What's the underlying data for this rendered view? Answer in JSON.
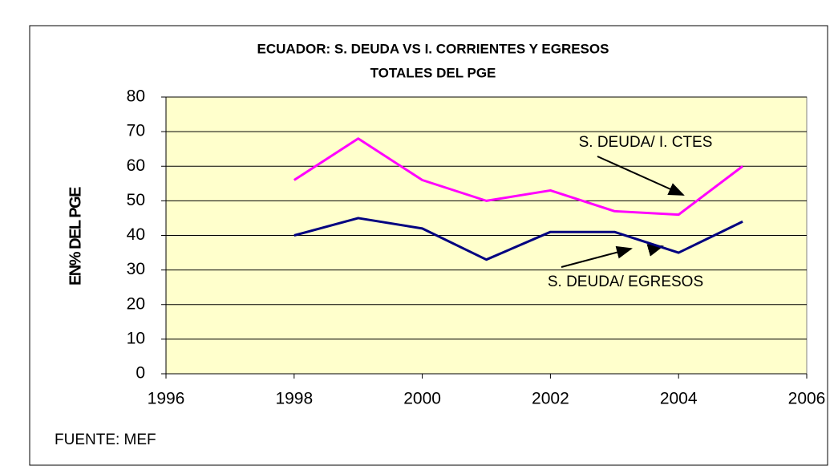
{
  "chart_data": {
    "type": "line",
    "title_lines": [
      "ECUADOR: S. DEUDA VS I. CORRIENTES  Y EGRESOS",
      "TOTALES DEL PGE"
    ],
    "y_label": "EN% DEL PGE",
    "source": "FUENTE: MEF",
    "x": [
      1998,
      1999,
      2000,
      2001,
      2002,
      2003,
      2004,
      2005
    ],
    "series": [
      {
        "name": "S. DEUDA/ I. CTES",
        "color": "#ff00ff",
        "values": [
          56,
          68,
          56,
          50,
          53,
          47,
          46,
          60
        ]
      },
      {
        "name": "S. DEUDA/ EGRESOS",
        "color": "#000080",
        "values": [
          40,
          45,
          42,
          33,
          41,
          41,
          35,
          44
        ]
      }
    ],
    "xlim": [
      1996,
      2006
    ],
    "xticks": [
      1996,
      1998,
      2000,
      2002,
      2004,
      2006
    ],
    "ylim": [
      0,
      80
    ],
    "yticks": [
      0,
      10,
      20,
      30,
      40,
      50,
      60,
      70,
      80
    ],
    "grid": true
  }
}
